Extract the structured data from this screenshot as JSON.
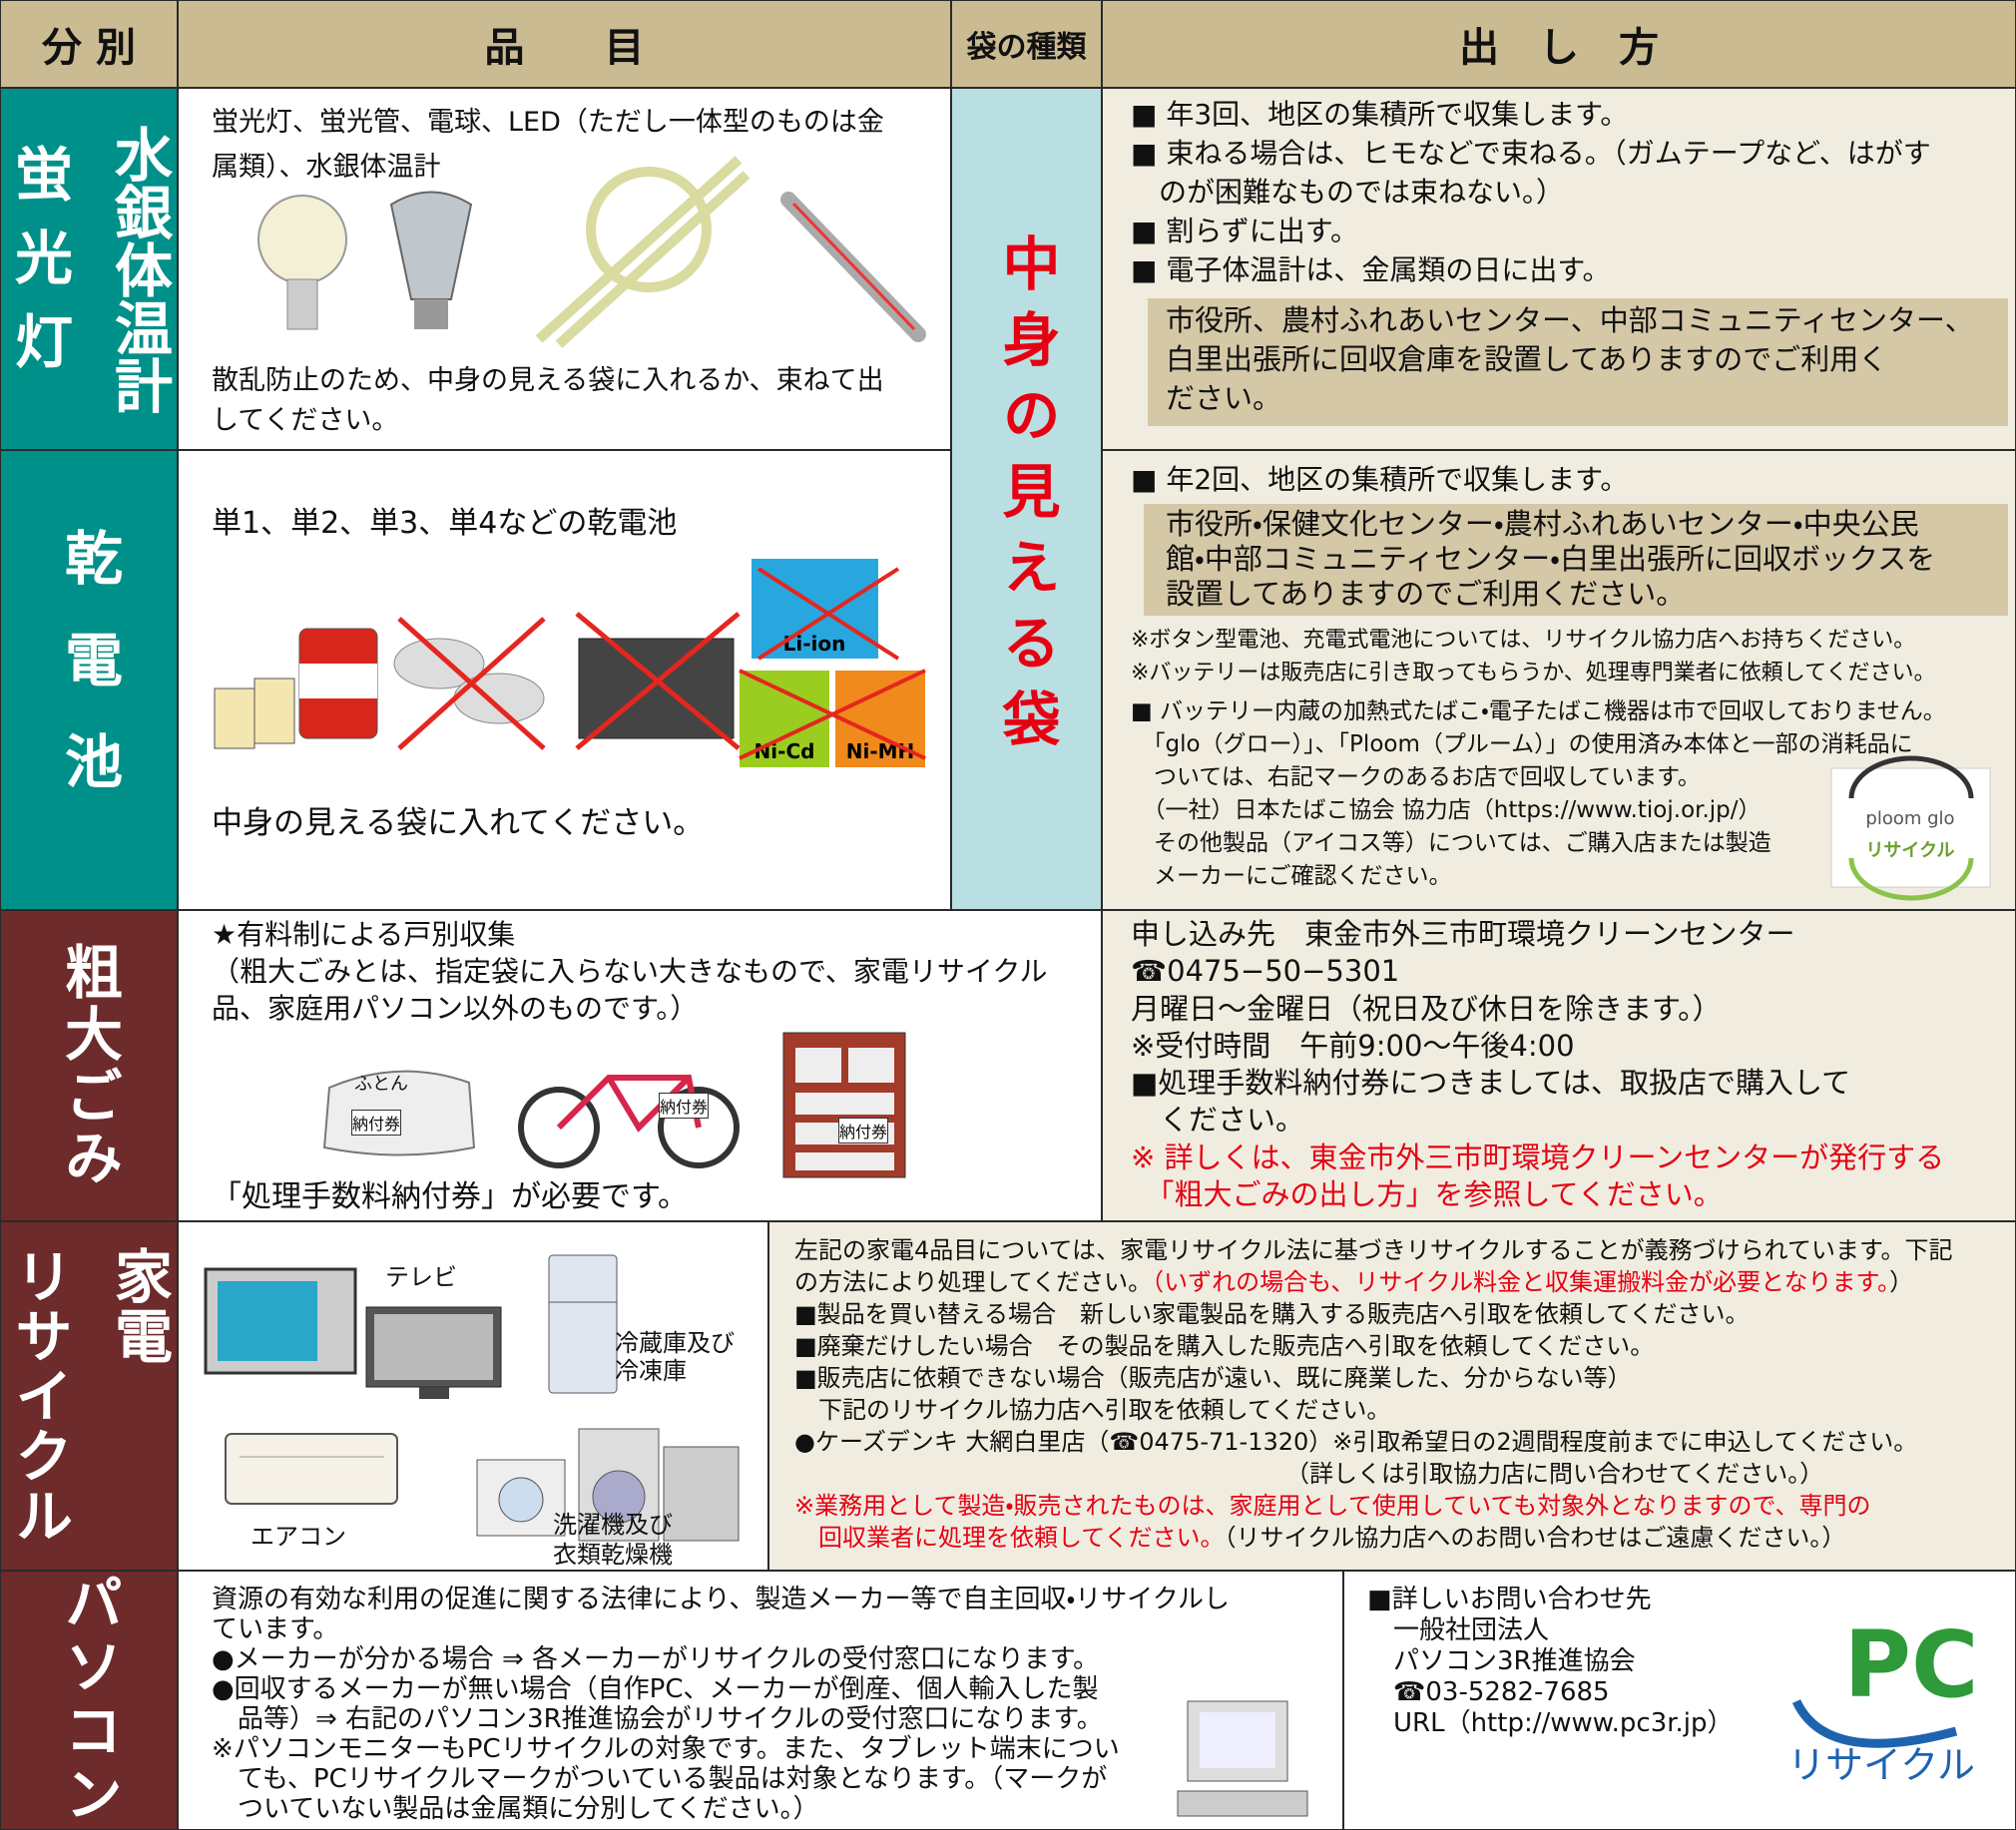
{
  "header": {
    "category": "分 別",
    "items": "品　　目",
    "bag_type": "袋の種類",
    "method": "出　し　方"
  },
  "bag_label": "中身の見える袋",
  "sections": [
    {
      "label": [
        "水銀体温計",
        "蛍光灯"
      ],
      "items_top": [
        "蛍光灯、蛍光管、電球、LED（ただし一体型のものは金",
        "属類）、水銀体温計"
      ],
      "items_bottom": [
        "散乱防止のため、中身の見える袋に入れるか、束ねて出",
        "してください。"
      ],
      "method": [
        "■ 年3回、地区の集積所で収集します。",
        "■ 束ねる場合は、ヒモなどで束ねる。（ガムテープなど、はがす",
        "　のが困難なものでは束ねない。）",
        "■ 割らずに出す。",
        "■ 電子体温計は、金属類の日に出す。"
      ],
      "method_box": [
        "市役所、農村ふれあいセンター、中部コミュニティセンター、",
        "白里出張所に回収倉庫を設置してありますのでご利用く",
        "ださい。"
      ]
    },
    {
      "label": [
        "乾電池"
      ],
      "items_top": [
        "単1、単2、単3、単4などの乾電池"
      ],
      "battery_marks": [
        "Li-ion",
        "Ni-Cd",
        "Ni-MH"
      ],
      "items_bottom": [
        "中身の見える袋に入れてください。"
      ],
      "method": [
        "■ 年2回、地区の集積所で収集します。"
      ],
      "method_box": [
        "市役所・保健文化センター・農村ふれあいセンター・中央公民",
        "館・中部コミュニティセンター・白里出張所に回収ボックスを",
        "設置してありますのでご利用ください。"
      ],
      "notes": [
        "※ボタン型電池、充電式電池については、リサイクル協力店へお持ちください。",
        "※バッテリーは販売店に引き取ってもらうか、処理専門業者に依頼してください。"
      ],
      "method_more": [
        "■ バッテリー内蔵の加熱式たばこ・電子たばこ機器は市で回収しておりません。",
        "　「glo（グロー）」、「Ploom（プルーム）」の使用済み本体と一部の消耗品に",
        "　ついては、右記マークのあるお店で回収しています。",
        "　（一社）日本たばこ協会 協力店（https://www.tioj.or.jp/）",
        "　その他製品（アイコス等）については、ご購入店または製造",
        "　メーカーにご確認ください。"
      ],
      "logo": [
        "ploom glo",
        "リサイクル"
      ]
    },
    {
      "label": [
        "粗大ごみ"
      ],
      "items_top": [
        "★有料制による戸別収集",
        "（粗大ごみとは、指定袋に入らない大きなもので、家電リサイクル",
        "品、家庭用パソコン以外のものです。）"
      ],
      "image_labels": [
        "ふとん",
        "納付券",
        "納付券",
        "納付券"
      ],
      "items_bottom": [
        "「処理手数料納付券」が必要です。"
      ],
      "method": [
        "申し込み先　東金市外三市町環境クリーンセンター",
        "☎0475−50−5301",
        "月曜日～金曜日（祝日及び休日を除きます。）",
        "※受付時間　午前9:00～午後4:00",
        "■処理手数料納付券につきましては、取扱店で購入して",
        "　ください。",
        [
          {
            "text": "※ 詳しくは、東金市外三市町環境クリーンセンターが発行する",
            "color": "#e60012"
          }
        ],
        [
          {
            "text": "　「粗大ごみの出し方」を参照してください。",
            "color": "#e60012"
          }
        ]
      ]
    },
    {
      "label": [
        "家電",
        "リサイクル"
      ],
      "image_labels": [
        "テレビ",
        "冷蔵庫及び",
        "冷凍庫",
        "エアコン",
        "洗濯機及び",
        "衣類乾燥機"
      ],
      "method": [
        "左記の家電4品目については、家電リサイクル法に基づきリサイクルすることが義務づけられています。下記",
        [
          "の方法により処理してください。",
          {
            "text": "（いずれの場合も、リサイクル料金と収集運搬料金が必要となります。",
            "color": "#e60012"
          },
          "）"
        ],
        "■製品を買い替える場合　新しい家電製品を購入する販売店へ引取を依頼してください。",
        "■廃棄だけしたい場合　その製品を購入した販売店へ引取を依頼してください。",
        "■販売店に依頼できない場合（販売店が遠い、既に廃業した、分からない等）",
        "　下記のリサイクル協力店へ引取を依頼してください。",
        "●ケーズデンキ 大網白里店（☎0475-71-1320）※引取希望日の2週間程度前までに申込してください。",
        "　　　　　　　　　　　　　　　　　　　　　（詳しくは引取協力店に問い合わせてください。）",
        [
          {
            "text": "※業務用として製造・販売されたものは、家庭用として使用していても対象外となりますので、専門の",
            "color": "#e60012"
          }
        ],
        [
          {
            "text": "　回収業者に処理を依頼してください。",
            "color": "#e60012"
          },
          "（リサイクル協力店へのお問い合わせはご遠慮ください。）"
        ]
      ]
    },
    {
      "label": [
        "パソコン"
      ],
      "items_top": [
        "資源の有効な利用の促進に関する法律により、製造メーカー等で自主回収・リサイクルし",
        "ています。",
        "●メーカーが分かる場合 ⇒ 各メーカーがリサイクルの受付窓口になります。",
        "●回収するメーカーが無い場合（自作PC、メーカーが倒産、個人輸入した製",
        "　品等）⇒ 右記のパソコン3R推進協会がリサイクルの受付窓口になります。",
        "※パソコンモニターもPCリサイクルの対象です。また、タブレット端末につい",
        "　ても、PCリサイクルマークがついている製品は対象となります。（マークが",
        "　ついていない製品は金属類に分別してください。）"
      ],
      "contact": [
        "■詳しいお問い合わせ先",
        "　一般社団法人",
        "　パソコン3R推進協会",
        "　☎03-5282-7685",
        "　URL（http://www.pc3r.jp）"
      ],
      "logo": [
        "PC",
        "リサイクル"
      ]
    }
  ]
}
